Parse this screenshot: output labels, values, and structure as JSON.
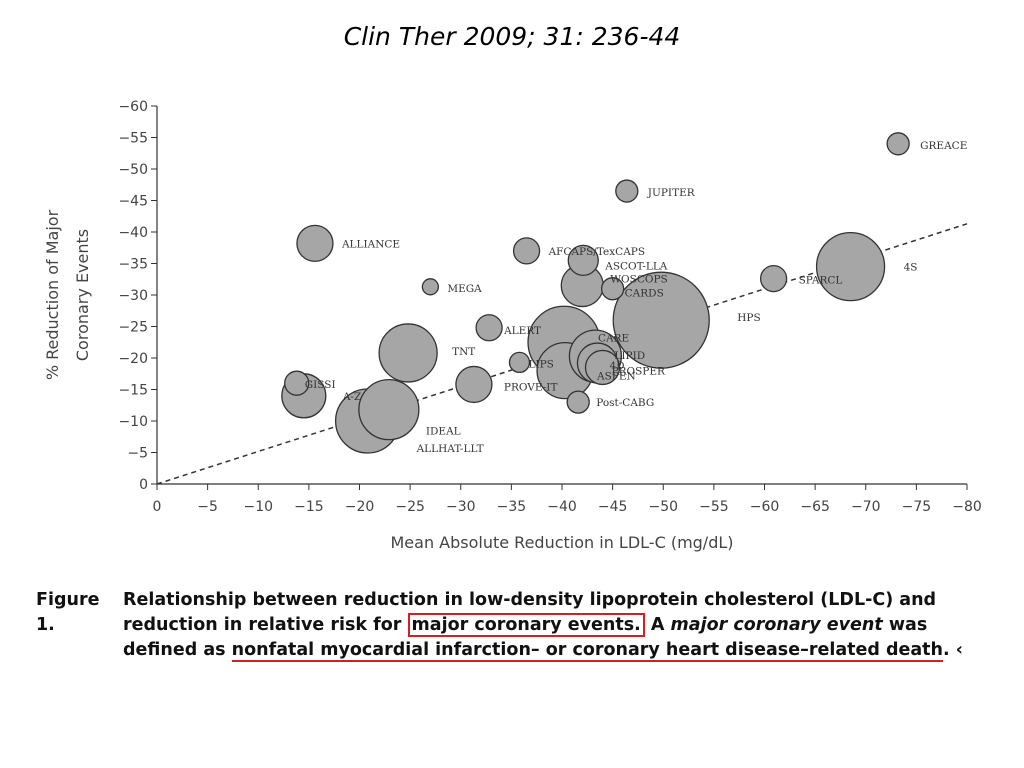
{
  "slide": {
    "title": "Clin Ther 2009; 31: 236-44"
  },
  "caption": {
    "label": "Figure 1.",
    "part1": "Relationship between reduction in low-density lipoprotein cholesterol (LDL-C) and reduction in relative risk for",
    "boxed": "major coronary events.",
    "part2": " A ",
    "italic": "major coronary event",
    "part3": " was defined as ",
    "underlined": "nonfatal myocardial infarction– or coronary heart disease–related death",
    "part4": ". ‹"
  },
  "colors": {
    "bubble_fill": "#a6a6a6",
    "bubble_stroke": "#333333",
    "axis": "#333333",
    "highlight": "#d21f26"
  },
  "chart_data": {
    "type": "scatter",
    "xlabel": "Mean Absolute Reduction in LDL-C (mg/dL)",
    "ylabel": "% Reduction of Major Coronary Events",
    "xlim": [
      0,
      -80
    ],
    "ylim": [
      0,
      -60
    ],
    "xticks": [
      "0",
      "−5",
      "−10",
      "−15",
      "−20",
      "−25",
      "−30",
      "−35",
      "−40",
      "−45",
      "−50",
      "−55",
      "−60",
      "−65",
      "−70",
      "−75",
      "−80"
    ],
    "yticks": [
      "0",
      "−5",
      "−10",
      "−15",
      "−20",
      "−25",
      "−30",
      "−35",
      "−40",
      "−45",
      "−50",
      "−55",
      "−60"
    ],
    "grid": false,
    "trendline": {
      "style": "dashed",
      "from": [
        0,
        0
      ],
      "to": [
        -80,
        -41.3
      ]
    },
    "points": [
      {
        "label": "GREACE",
        "x": -73.2,
        "y": -54
      },
      {
        "label": "JUPITER",
        "x": -46.4,
        "y": -46.5
      },
      {
        "label": "ALLIANCE",
        "x": -15.6,
        "y": -38.2
      },
      {
        "label": "AFCAPS/TexCAPS",
        "x": -36.5,
        "y": -37
      },
      {
        "label": "ASCOT-LLA",
        "x": -42.1,
        "y": -35.5
      },
      {
        "label": "4S",
        "x": -68.5,
        "y": -34.5
      },
      {
        "label": "SPARCL",
        "x": -60.9,
        "y": -32.6
      },
      {
        "label": "WOSCOPS",
        "x": -42,
        "y": -31.5
      },
      {
        "label": "CARDS",
        "x": -45,
        "y": -31
      },
      {
        "label": "MEGA",
        "x": -27,
        "y": -31.3
      },
      {
        "label": "HPS",
        "x": -49.8,
        "y": -26
      },
      {
        "label": "ALERT",
        "x": -32.8,
        "y": -24.8
      },
      {
        "label": "CARE",
        "x": -40.2,
        "y": -22.5
      },
      {
        "label": "LIPID",
        "x": -43.3,
        "y": -20.3
      },
      {
        "label": "TNT",
        "x": -24.8,
        "y": -20.8
      },
      {
        "label": "4D",
        "x": -43.5,
        "y": -19.2
      },
      {
        "label": "LIPS",
        "x": -35.8,
        "y": -19.3
      },
      {
        "label": "PROSPER",
        "x": -44,
        "y": -18.5
      },
      {
        "label": "ASPEN",
        "x": -40.3,
        "y": -18
      },
      {
        "label": "PROVE-IT",
        "x": -31.3,
        "y": -15.8
      },
      {
        "label": "GISSI",
        "x": -13.8,
        "y": -16
      },
      {
        "label": "A-Z",
        "x": -14.5,
        "y": -14
      },
      {
        "label": "Post-CABG",
        "x": -41.6,
        "y": -13
      },
      {
        "label": "IDEAL",
        "x": -22.9,
        "y": -11.8
      },
      {
        "label": "ALLHAT-LLT",
        "x": -20.8,
        "y": -10
      }
    ]
  }
}
